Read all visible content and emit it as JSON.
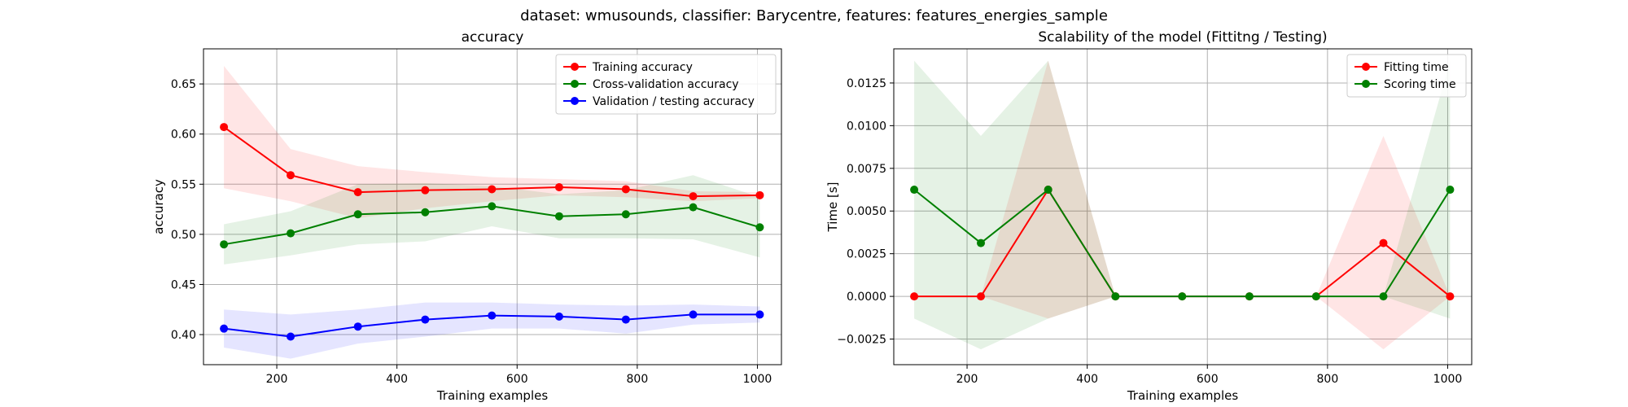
{
  "suptitle": "dataset: wmusounds, classifier: Barycentre, features: features_energies_sample",
  "chart_data": [
    {
      "type": "line",
      "title": "accuracy",
      "xlabel": "Training examples",
      "ylabel": "accuracy",
      "xlim": [
        78,
        1040
      ],
      "ylim": [
        0.37,
        0.685
      ],
      "grid": true,
      "legend_position": "top-right",
      "x": [
        112,
        223,
        335,
        447,
        558,
        670,
        781,
        893,
        1004
      ],
      "xticks": [
        200,
        400,
        600,
        800,
        1000
      ],
      "xtick_labels": [
        "200",
        "400",
        "600",
        "800",
        "1000"
      ],
      "yticks": [
        0.4,
        0.45,
        0.5,
        0.55,
        0.6,
        0.65
      ],
      "ytick_labels": [
        "0.40",
        "0.45",
        "0.50",
        "0.55",
        "0.60",
        "0.65"
      ],
      "series": [
        {
          "name": "Training accuracy",
          "color": "#ff0000",
          "values": [
            0.607,
            0.559,
            0.542,
            0.544,
            0.545,
            0.547,
            0.545,
            0.538,
            0.539
          ],
          "band_upper": [
            0.668,
            0.585,
            0.568,
            0.562,
            0.557,
            0.555,
            0.553,
            0.543,
            0.542
          ],
          "band_lower": [
            0.546,
            0.533,
            0.516,
            0.526,
            0.533,
            0.539,
            0.537,
            0.533,
            0.536
          ]
        },
        {
          "name": "Cross-validation accuracy",
          "color": "#008000",
          "values": [
            0.49,
            0.501,
            0.52,
            0.522,
            0.528,
            0.518,
            0.52,
            0.527,
            0.507
          ],
          "band_upper": [
            0.51,
            0.523,
            0.55,
            0.551,
            0.548,
            0.54,
            0.544,
            0.559,
            0.537
          ],
          "band_lower": [
            0.47,
            0.479,
            0.49,
            0.493,
            0.508,
            0.496,
            0.496,
            0.495,
            0.477
          ]
        },
        {
          "name": "Validation / testing accuracy",
          "color": "#0000ff",
          "values": [
            0.406,
            0.398,
            0.408,
            0.415,
            0.419,
            0.418,
            0.415,
            0.42,
            0.42
          ],
          "band_upper": [
            0.425,
            0.42,
            0.425,
            0.432,
            0.432,
            0.43,
            0.429,
            0.43,
            0.428
          ],
          "band_lower": [
            0.387,
            0.376,
            0.391,
            0.398,
            0.406,
            0.406,
            0.401,
            0.41,
            0.412
          ]
        }
      ]
    },
    {
      "type": "line",
      "title": "Scalability of the model (Fittitng / Testing)",
      "xlabel": "Training examples",
      "ylabel": "Time [s]",
      "xlim": [
        78,
        1040
      ],
      "ylim": [
        -0.004,
        0.0145
      ],
      "grid": true,
      "legend_position": "top-right",
      "x": [
        112,
        223,
        335,
        447,
        558,
        670,
        781,
        893,
        1004
      ],
      "xticks": [
        200,
        400,
        600,
        800,
        1000
      ],
      "xtick_labels": [
        "200",
        "400",
        "600",
        "800",
        "1000"
      ],
      "yticks": [
        -0.0025,
        0.0,
        0.0025,
        0.005,
        0.0075,
        0.01,
        0.0125
      ],
      "ytick_labels": [
        "−0.0025",
        "0.0000",
        "0.0025",
        "0.0050",
        "0.0075",
        "0.0100",
        "0.0125"
      ],
      "series": [
        {
          "name": "Fitting time",
          "color": "#ff0000",
          "values": [
            0.0,
            0.0,
            0.00625,
            0.0,
            0.0,
            0.0,
            0.0,
            0.003125,
            0.0
          ],
          "band_upper": [
            0.0,
            0.0,
            0.0138,
            0.0,
            0.0,
            0.0,
            0.0,
            0.0094,
            0.0
          ],
          "band_lower": [
            0.0,
            0.0,
            -0.0013,
            0.0,
            0.0,
            0.0,
            0.0,
            -0.0031,
            0.0
          ]
        },
        {
          "name": "Scoring time",
          "color": "#008000",
          "values": [
            0.00625,
            0.003125,
            0.00625,
            0.0,
            0.0,
            0.0,
            0.0,
            0.0,
            0.00625
          ],
          "band_upper": [
            0.0138,
            0.0094,
            0.0138,
            0.0,
            0.0,
            0.0,
            0.0,
            0.0,
            0.0138
          ],
          "band_lower": [
            -0.0013,
            -0.0031,
            -0.0013,
            0.0,
            0.0,
            0.0,
            0.0,
            0.0,
            -0.0013
          ]
        }
      ]
    }
  ]
}
